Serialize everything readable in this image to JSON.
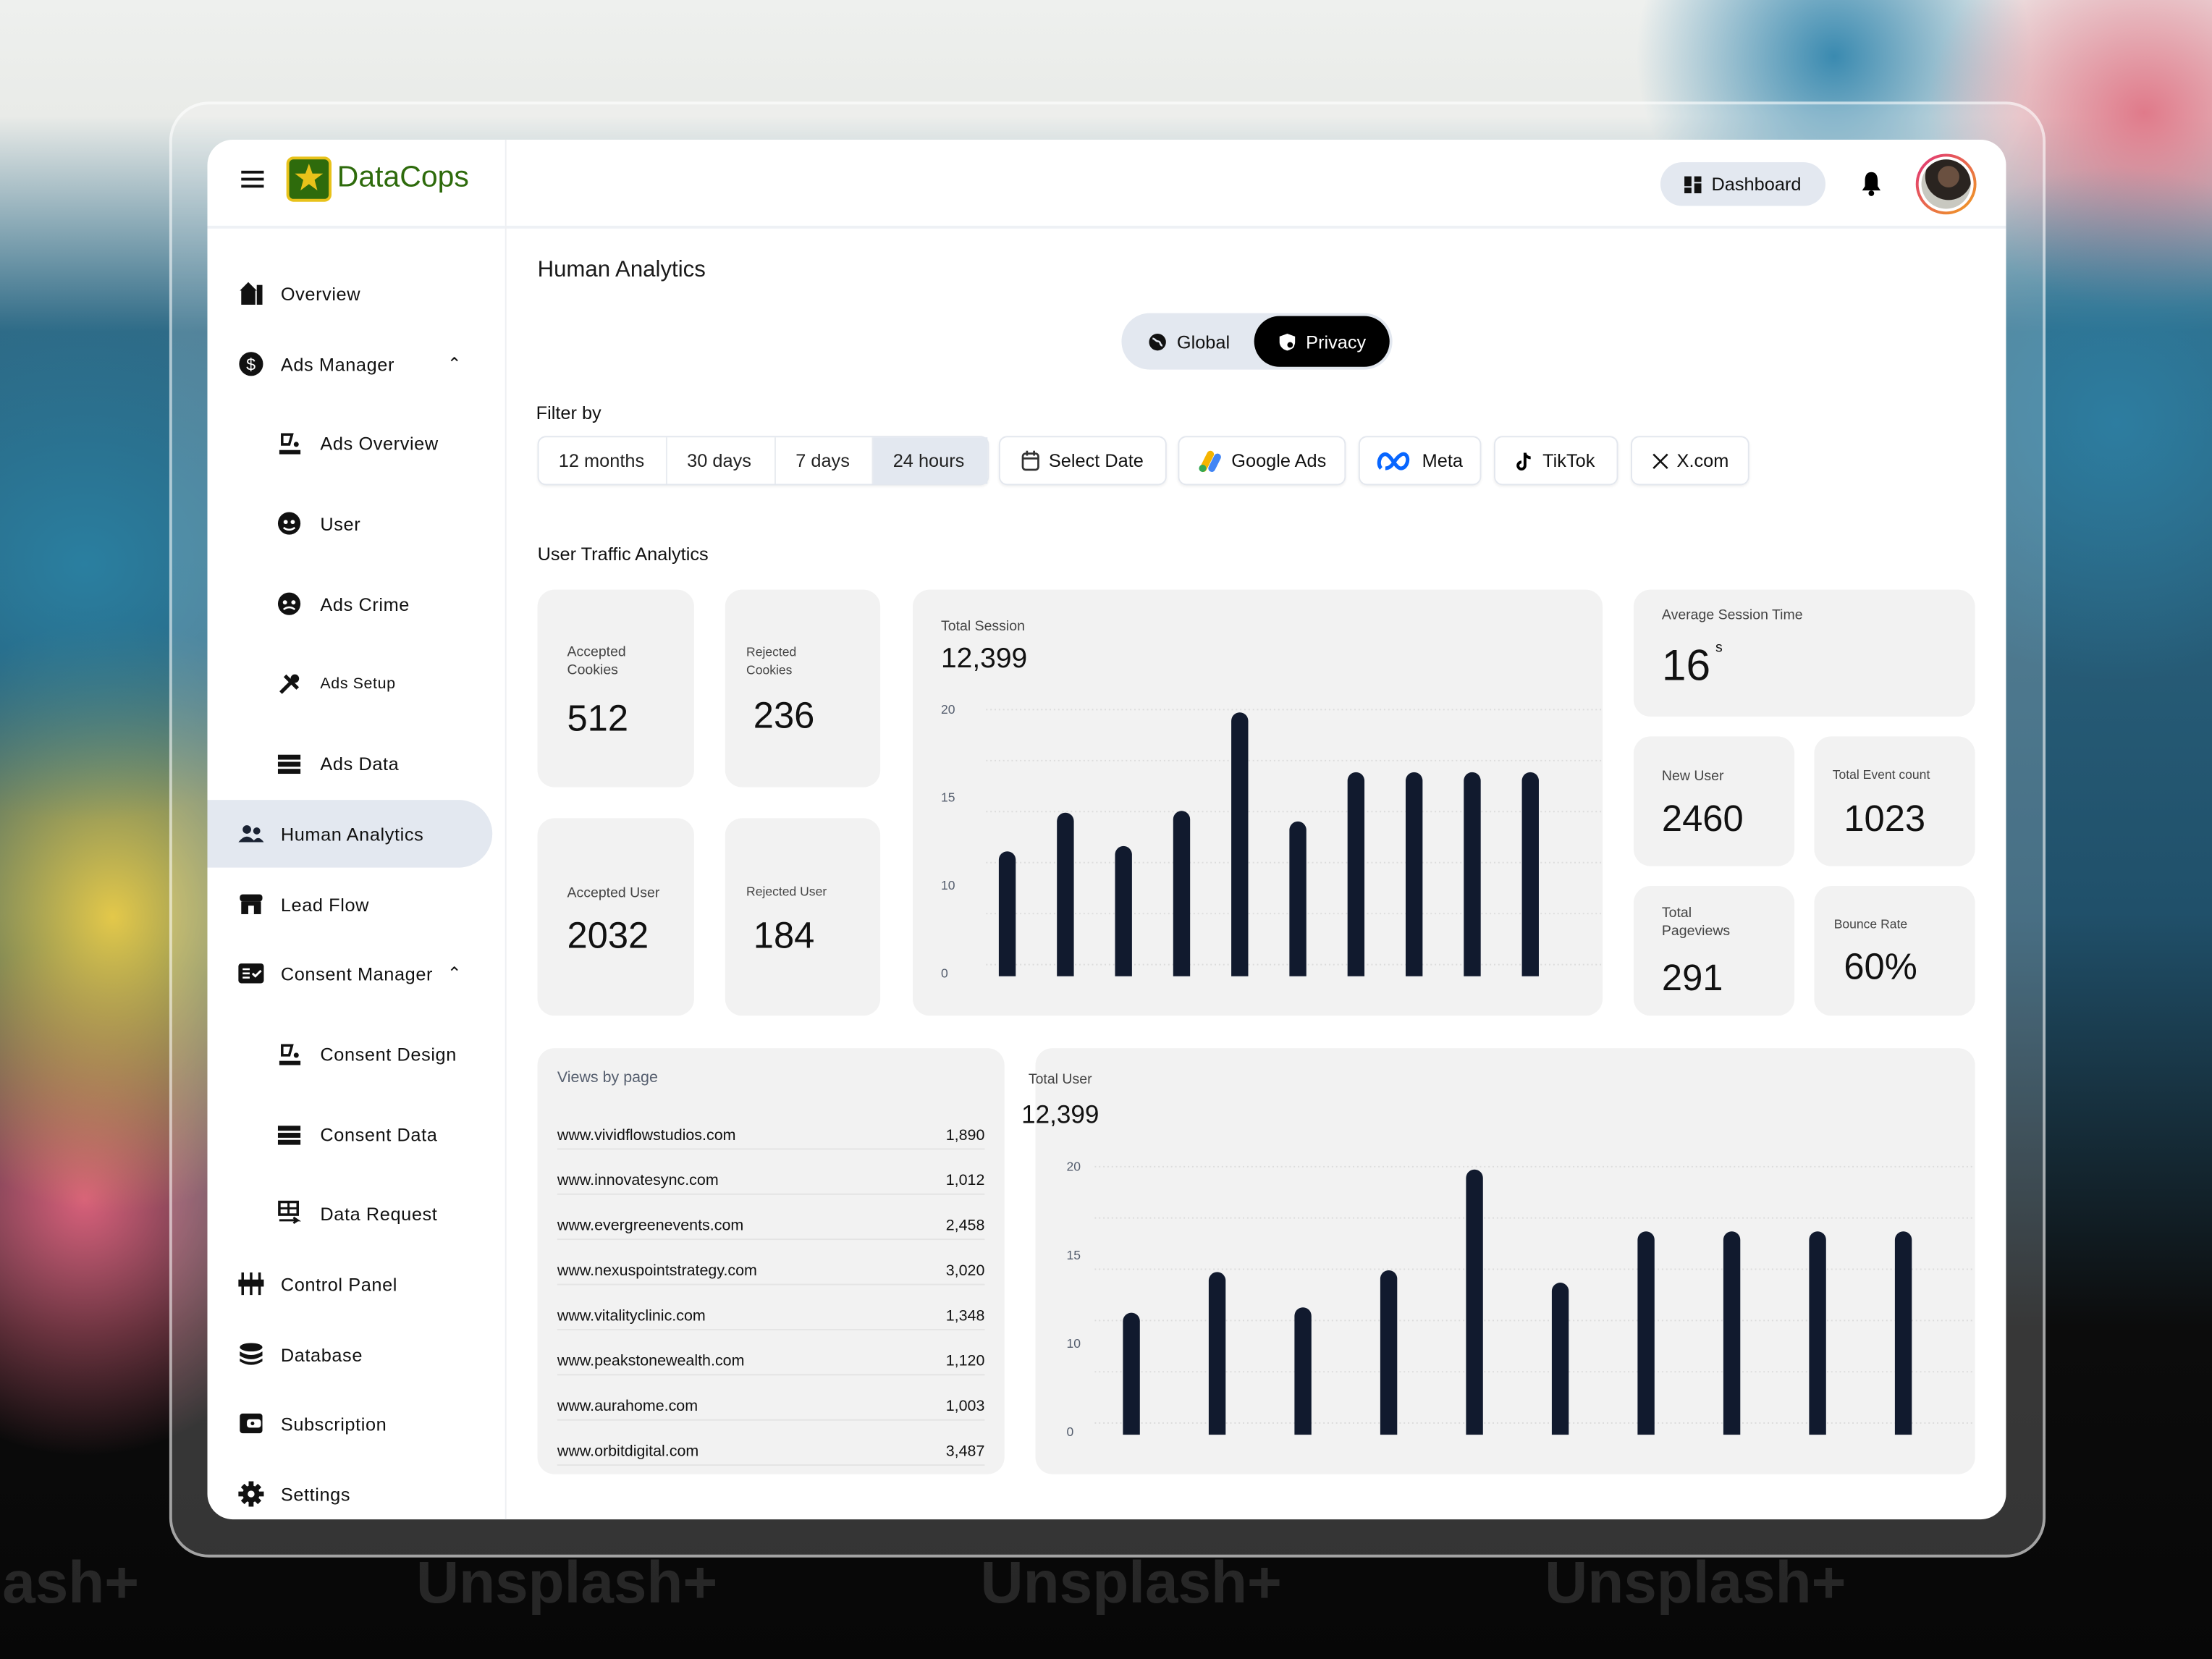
{
  "app": {
    "name": "DataCops",
    "logo_icon": "sheriff-star-badge"
  },
  "header": {
    "dashboard_label": "Dashboard",
    "dashboard_icon": "grid-icon",
    "bell_icon": "bell-icon",
    "avatar": "user-avatar"
  },
  "sidebar": {
    "items": [
      {
        "label": "Overview",
        "icon": "building"
      },
      {
        "label": "Ads Manager",
        "icon": "dollar-circle",
        "expanded": true
      },
      {
        "label": "Ads Overview",
        "icon": "paint-bucket"
      },
      {
        "label": "User",
        "icon": "user-face"
      },
      {
        "label": "Ads Crime",
        "icon": "face-crime"
      },
      {
        "label": "Ads Setup",
        "icon": "tools"
      },
      {
        "label": "Ads Data",
        "icon": "server"
      },
      {
        "label": "Human Analytics",
        "icon": "users",
        "active": true
      },
      {
        "label": "Lead Flow",
        "icon": "store"
      },
      {
        "label": "Consent Manager",
        "icon": "checklist",
        "expanded": true
      },
      {
        "label": "Consent Design",
        "icon": "paint-bucket"
      },
      {
        "label": "Consent Data",
        "icon": "server"
      },
      {
        "label": "Data Request",
        "icon": "table-arrow"
      },
      {
        "label": "Control Panel",
        "icon": "sliders"
      },
      {
        "label": "Database",
        "icon": "database"
      },
      {
        "label": "Subscription",
        "icon": "wallet"
      },
      {
        "label": "Settings",
        "icon": "gear"
      }
    ]
  },
  "main": {
    "title": "Human Analytics",
    "scope_toggle": {
      "options": [
        "Global",
        "Privacy"
      ],
      "selected": "Privacy"
    },
    "filter_label": "Filter by",
    "time_ranges": [
      "12 months",
      "30 days",
      "7 days",
      "24 hours"
    ],
    "selected_range": "24 hours",
    "select_date": "Select Date",
    "sources": [
      "Google Ads",
      "Meta",
      "TikTok",
      "X.com"
    ],
    "section_title": "User Traffic Analytics",
    "stats": {
      "accepted_cookies": {
        "label": "Accepted Cookies",
        "value": "512"
      },
      "rejected_cookies": {
        "label": "Rejected Cookies",
        "value": "236"
      },
      "accepted_user": {
        "label": "Accepted User",
        "value": "2032"
      },
      "rejected_user": {
        "label": "Rejected User",
        "value": "184"
      },
      "avg_session": {
        "label": "Average Session Time",
        "value": "16",
        "unit": "s"
      },
      "new_user": {
        "label": "New User",
        "value": "2460"
      },
      "total_events": {
        "label": "Total Event count",
        "value": "1023"
      },
      "total_pageviews": {
        "label": "Total Pageviews",
        "value": "291"
      },
      "bounce_rate": {
        "label": "Bounce Rate",
        "value": "60%"
      }
    },
    "views_by_page": {
      "title": "Views by page",
      "rows": [
        {
          "page": "www.vividflowstudios.com",
          "views": "1,890"
        },
        {
          "page": "www.innovatesync.com",
          "views": "1,012"
        },
        {
          "page": "www.evergreenevents.com",
          "views": "2,458"
        },
        {
          "page": "www.nexuspointstrategy.com",
          "views": "3,020"
        },
        {
          "page": "www.vitalityclinic.com",
          "views": "1,348"
        },
        {
          "page": "www.peakstonewealth.com",
          "views": "1,120"
        },
        {
          "page": "www.aurahome.com",
          "views": "1,003"
        },
        {
          "page": "www.orbitdigital.com",
          "views": "3,487"
        }
      ]
    }
  },
  "chart_data": [
    {
      "type": "bar",
      "title": "Total Session",
      "total": "12,399",
      "yticks": [
        "20",
        "15",
        "10",
        "0"
      ],
      "values": [
        12.1,
        14.3,
        12.4,
        14.4,
        20,
        13.8,
        16.6,
        16.6,
        16.6,
        16.6
      ],
      "bar_color": "#111a2e",
      "grid": true
    },
    {
      "type": "bar",
      "title": "Total User",
      "total": "12,399",
      "yticks": [
        "20",
        "15",
        "10",
        "0"
      ],
      "values": [
        11.9,
        14.2,
        12.2,
        14.3,
        20,
        13.6,
        16.5,
        16.5,
        16.5,
        16.5
      ],
      "bar_color": "#111a2e",
      "grid": true
    }
  ],
  "colors": {
    "brand_green": "#2e6b0c",
    "logo_yellow": "#e8c21a",
    "active_bg": "#e3e8f0",
    "tile_bg": "#f2f2f2",
    "bar": "#111a2e"
  }
}
